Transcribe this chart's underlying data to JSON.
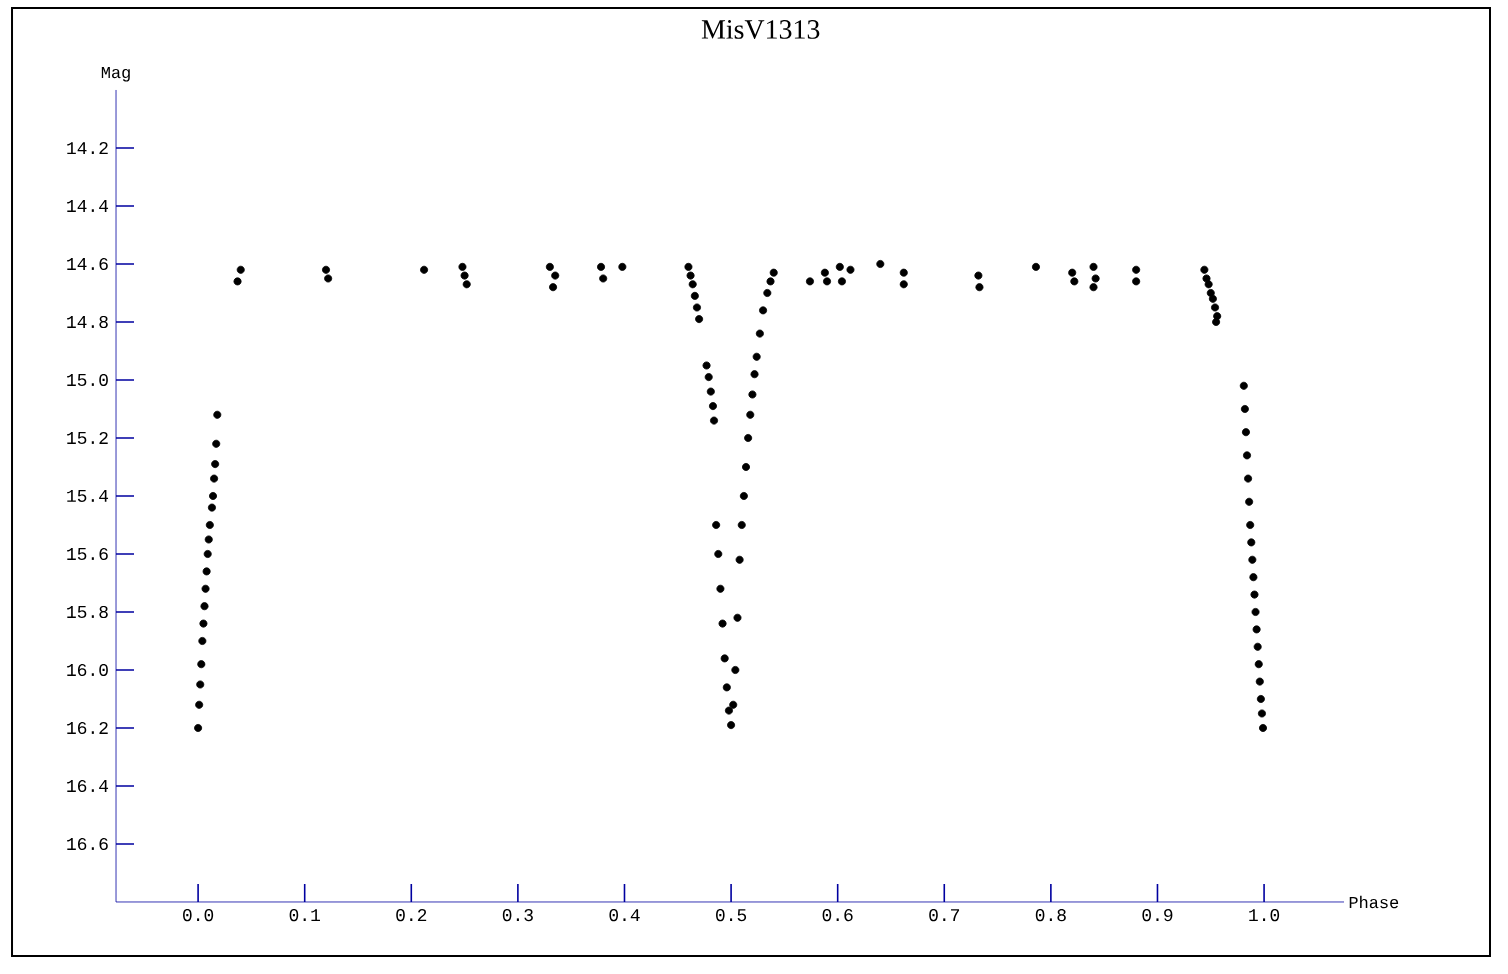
{
  "chart_data": {
    "type": "scatter",
    "title": "MisV1313",
    "xlabel": "Phase",
    "ylabel": "Mag",
    "color": "#000000",
    "marker": "circle",
    "xlim": [
      -0.077,
      1.075
    ],
    "ylim": [
      16.8,
      14.0
    ],
    "xticks": [
      {
        "value": 0,
        "label": "0.0"
      },
      0.1,
      0.2,
      0.3,
      0.4,
      0.5,
      0.6,
      0.7,
      0.8,
      0.9,
      {
        "value": 1,
        "label": "1.0"
      }
    ],
    "yticks": [
      14.2,
      14.4,
      14.6,
      14.8,
      {
        "value": 15,
        "label": "15.0"
      },
      15.2,
      15.4,
      15.6,
      15.8,
      {
        "value": 16,
        "label": "16.0"
      },
      16.2,
      16.4,
      16.6
    ],
    "x": [
      0.0,
      0.001,
      0.002,
      0.003,
      0.004,
      0.005,
      0.006,
      0.007,
      0.008,
      0.009,
      0.01,
      0.011,
      0.013,
      0.014,
      0.015,
      0.016,
      0.017,
      0.018,
      0.04,
      0.037,
      0.12,
      0.122,
      0.212,
      0.248,
      0.25,
      0.252,
      0.33,
      0.335,
      0.333,
      0.378,
      0.38,
      0.398,
      0.46,
      0.462,
      0.464,
      0.466,
      0.468,
      0.47,
      0.477,
      0.479,
      0.481,
      0.483,
      0.484,
      0.486,
      0.488,
      0.49,
      0.492,
      0.494,
      0.496,
      0.498,
      0.5,
      0.502,
      0.504,
      0.506,
      0.508,
      0.51,
      0.512,
      0.514,
      0.516,
      0.518,
      0.52,
      0.522,
      0.524,
      0.527,
      0.53,
      0.534,
      0.537,
      0.54,
      0.574,
      0.588,
      0.59,
      0.602,
      0.604,
      0.612,
      0.64,
      0.662,
      0.662,
      0.732,
      0.733,
      0.786,
      0.82,
      0.822,
      0.84,
      0.842,
      0.84,
      0.88,
      0.88,
      0.944,
      0.946,
      0.948,
      0.95,
      0.952,
      0.954,
      0.956,
      0.955,
      0.981,
      0.982,
      0.983,
      0.984,
      0.985,
      0.986,
      0.987,
      0.988,
      0.989,
      0.99,
      0.991,
      0.992,
      0.993,
      0.994,
      0.995,
      0.996,
      0.997,
      0.998,
      0.999
    ],
    "values": [
      16.2,
      16.12,
      16.05,
      15.98,
      15.9,
      15.84,
      15.78,
      15.72,
      15.66,
      15.6,
      15.55,
      15.5,
      15.44,
      15.4,
      15.34,
      15.29,
      15.22,
      15.12,
      14.62,
      14.66,
      14.62,
      14.65,
      14.62,
      14.61,
      14.64,
      14.67,
      14.61,
      14.64,
      14.68,
      14.61,
      14.65,
      14.61,
      14.61,
      14.64,
      14.67,
      14.71,
      14.75,
      14.79,
      14.95,
      14.99,
      15.04,
      15.09,
      15.14,
      15.5,
      15.6,
      15.72,
      15.84,
      15.96,
      16.06,
      16.14,
      16.19,
      16.12,
      16.0,
      15.82,
      15.62,
      15.5,
      15.4,
      15.3,
      15.2,
      15.12,
      15.05,
      14.98,
      14.92,
      14.84,
      14.76,
      14.7,
      14.66,
      14.63,
      14.66,
      14.63,
      14.66,
      14.61,
      14.66,
      14.62,
      14.6,
      14.63,
      14.67,
      14.64,
      14.68,
      14.61,
      14.63,
      14.66,
      14.61,
      14.65,
      14.68,
      14.62,
      14.66,
      14.62,
      14.65,
      14.67,
      14.7,
      14.72,
      14.75,
      14.78,
      14.8,
      15.02,
      15.1,
      15.18,
      15.26,
      15.34,
      15.42,
      15.5,
      15.56,
      15.62,
      15.68,
      15.74,
      15.8,
      15.86,
      15.92,
      15.98,
      16.04,
      16.1,
      16.15,
      16.2
    ]
  }
}
